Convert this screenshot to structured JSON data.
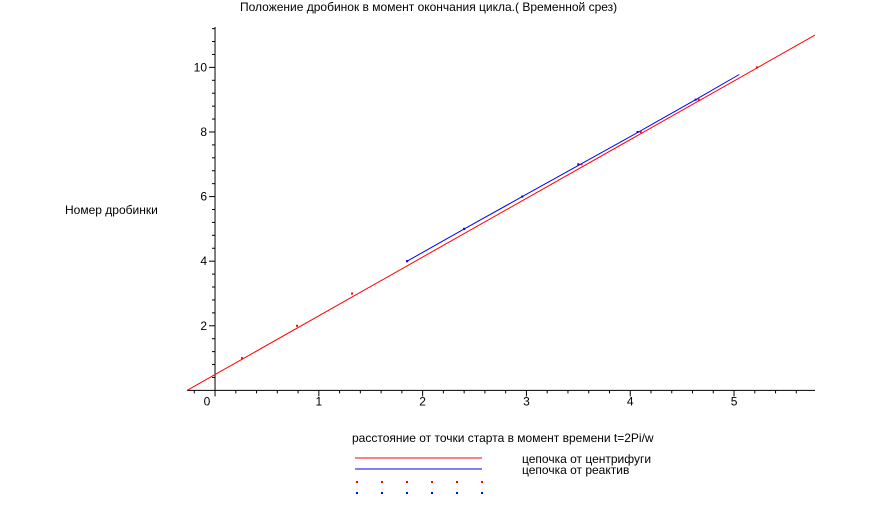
{
  "chart_data": {
    "type": "line",
    "title": "Положение дробинок в момент окончания цикла.( Временной срез)",
    "xlabel": "расстояние от точки старта в момент времени t=2Pi/w",
    "ylabel": "Номер дробинки",
    "xlim": [
      -0.27,
      5.78
    ],
    "ylim": [
      -0.05,
      11.25
    ],
    "x_ticks": [
      0,
      1,
      2,
      3,
      4,
      5
    ],
    "x_tick_labels": [
      "0",
      "1",
      "2",
      "3",
      "4",
      "5"
    ],
    "y_ticks": [
      2,
      4,
      6,
      8,
      10
    ],
    "y_tick_labels": [
      "2",
      "4",
      "6",
      "8",
      "10"
    ],
    "grid": false,
    "legend_position": "bottom",
    "series": [
      {
        "name": "цепочка от центрифуги",
        "color": "#ff0000",
        "style": "line",
        "x": [
          -0.27,
          5.78
        ],
        "y": [
          0.0,
          11.0
        ]
      },
      {
        "name": "цепочка от реактив",
        "color": "#0000ff",
        "style": "line",
        "x": [
          1.85,
          2.4,
          2.96,
          3.52,
          4.08,
          4.63,
          5.05
        ],
        "y": [
          4.0,
          5.0,
          6.0,
          7.0,
          8.0,
          9.0,
          9.78
        ]
      },
      {
        "name": "",
        "color": "#ff0000",
        "style": "points",
        "x": [
          0.26,
          0.79,
          1.32,
          1.85,
          2.4,
          2.96,
          3.53,
          4.1,
          4.66,
          5.22
        ],
        "y": [
          1.0,
          2.0,
          3.0,
          4.0,
          5.0,
          6.0,
          7.0,
          8.0,
          9.0,
          10.0
        ]
      },
      {
        "name": "",
        "color": "#0000ff",
        "style": "points",
        "x": [
          1.85,
          2.4,
          2.96,
          3.5,
          4.07,
          4.63
        ],
        "y": [
          4.0,
          5.0,
          6.0,
          7.0,
          8.0,
          9.0
        ]
      }
    ]
  }
}
